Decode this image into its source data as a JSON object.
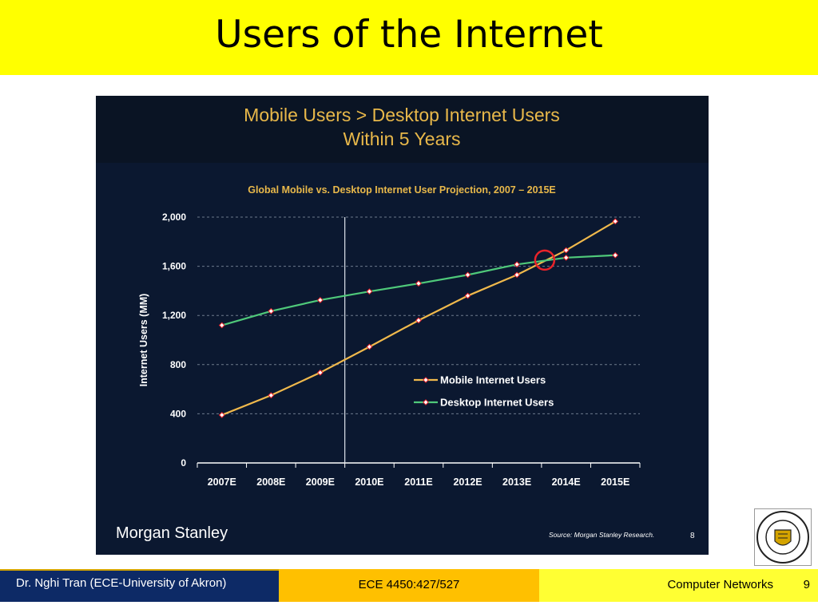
{
  "slide": {
    "title": "Users of the Internet",
    "footer": {
      "left": "Dr. Nghi Tran (ECE-University of Akron)",
      "middle": "ECE 4450:427/527",
      "right": "Computer Networks",
      "page_number": "9"
    },
    "logo": {
      "label": "THE UNIVERSITY OF AKRON 1870"
    }
  },
  "colors": {
    "title_bg": "#ffff00",
    "chart_bg": "#0b1830",
    "chart_header_bg": "#0a1424",
    "mobile_series": "#f0b94c",
    "desktop_series": "#4fc97a",
    "chart_title": "#e8b84a",
    "marker_highlight": "#e8232a"
  },
  "chart_data": {
    "type": "line",
    "header": "Mobile Users > Desktop Internet Users",
    "header_line2": "Within 5 Years",
    "title": "Global Mobile vs. Desktop Internet User Projection, 2007 – 2015E",
    "xlabel": "",
    "ylabel": "Internet Users (MM)",
    "ylim": [
      0,
      2000
    ],
    "yticks": [
      "0",
      "400",
      "800",
      "1,200",
      "1,600",
      "2,000"
    ],
    "ytick_values": [
      0,
      400,
      800,
      1200,
      1600,
      2000
    ],
    "categories": [
      "2007E",
      "2008E",
      "2009E",
      "2010E",
      "2011E",
      "2012E",
      "2013E",
      "2014E",
      "2015E"
    ],
    "series": [
      {
        "name": "Mobile Internet Users",
        "values": [
          390,
          550,
          735,
          945,
          1160,
          1360,
          1530,
          1730,
          1965
        ]
      },
      {
        "name": "Desktop Internet Users",
        "values": [
          1120,
          1235,
          1325,
          1395,
          1460,
          1530,
          1615,
          1670,
          1690
        ]
      }
    ],
    "grid": true,
    "legend_position": "right-middle",
    "crossover_highlight": "between 2013E and 2014E",
    "brand": "Morgan Stanley",
    "source": "Source: Morgan Stanley Research.",
    "page_ref": "8"
  }
}
